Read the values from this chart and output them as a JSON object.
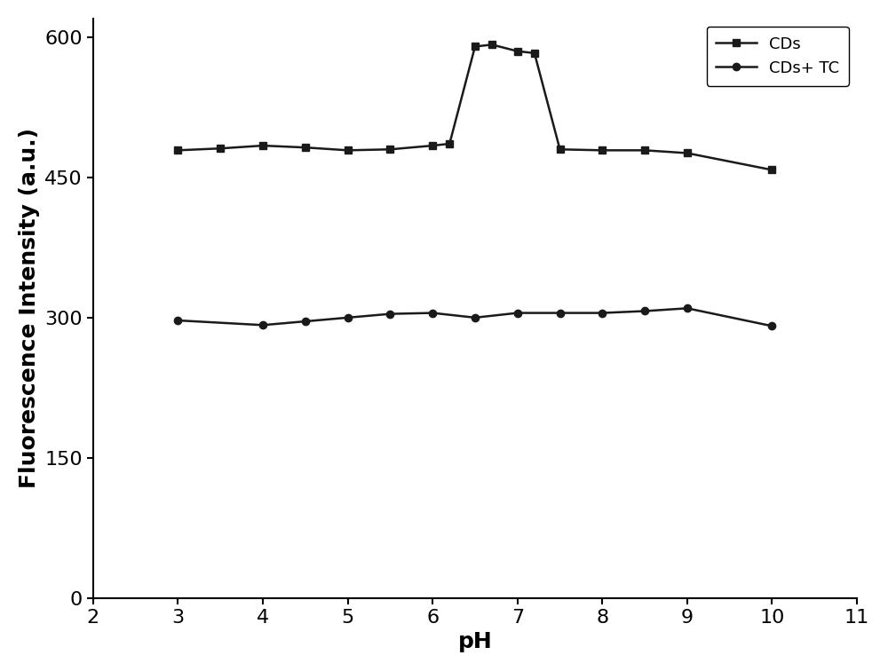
{
  "CDs_x": [
    3,
    3.5,
    4,
    4.5,
    5,
    5.5,
    6,
    6.2,
    6.5,
    6.7,
    7,
    7.2,
    7.5,
    8,
    8.5,
    9,
    10
  ],
  "CDs_y": [
    479,
    481,
    484,
    482,
    479,
    480,
    484,
    486,
    590,
    592,
    585,
    583,
    480,
    479,
    479,
    476,
    458
  ],
  "CDsTC_x": [
    3,
    4,
    4.5,
    5,
    5.5,
    6,
    6.5,
    7,
    7.5,
    8,
    8.5,
    9,
    10
  ],
  "CDsTC_y": [
    297,
    292,
    296,
    300,
    304,
    305,
    300,
    305,
    305,
    305,
    307,
    310,
    291
  ],
  "xlabel": "pH",
  "ylabel": "Fluorescence Intensity (a.u.)",
  "xlim": [
    2,
    11
  ],
  "ylim": [
    0,
    620
  ],
  "yticks": [
    0,
    150,
    300,
    450,
    600
  ],
  "xticks": [
    2,
    3,
    4,
    5,
    6,
    7,
    8,
    9,
    10,
    11
  ],
  "legend_labels": [
    "CDs",
    "CDs+ TC"
  ],
  "line_color": "#1a1a1a",
  "marker_size_square": 6,
  "marker_size_circle": 6,
  "linewidth": 1.8,
  "xlabel_fontsize": 18,
  "ylabel_fontsize": 18,
  "tick_fontsize": 16,
  "legend_fontsize": 13
}
